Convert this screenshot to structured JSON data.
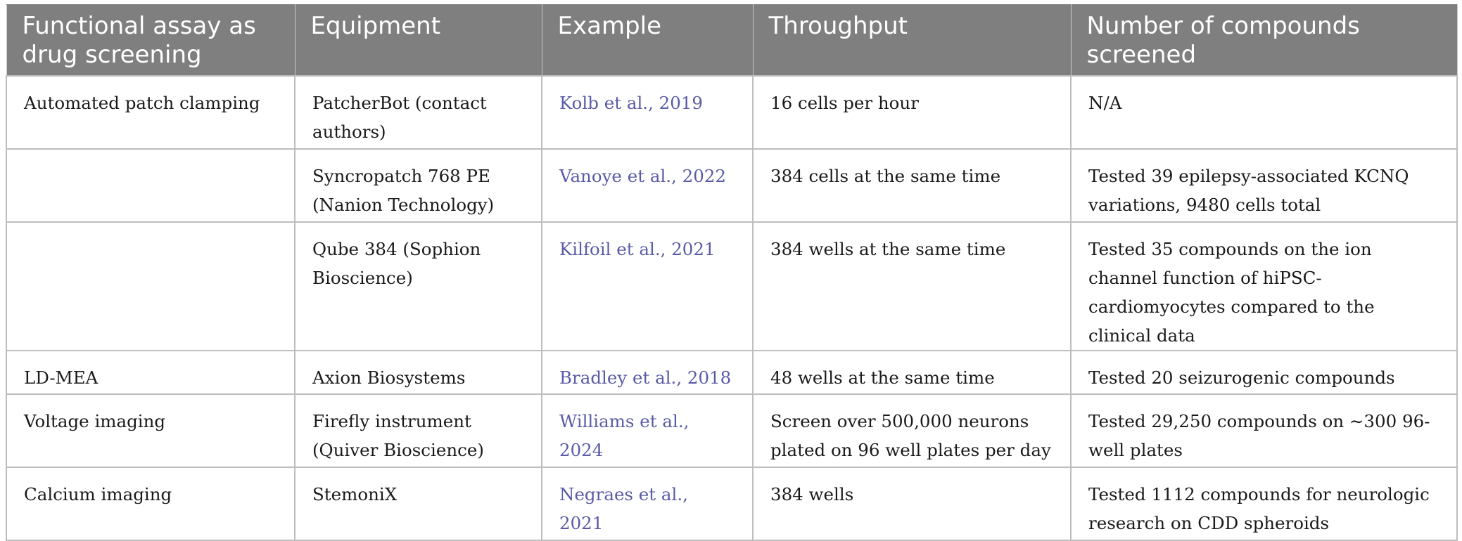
{
  "table": {
    "headers": [
      "Functional assay as drug screening",
      "Equipment",
      "Example",
      "Throughput",
      "Number of compounds screened"
    ],
    "rows": [
      {
        "assay": "Automated patch clamping",
        "equipment": "PatcherBot (contact authors)",
        "example": "Kolb et al., 2019",
        "throughput": "16 cells per hour",
        "compounds": "N/A"
      },
      {
        "assay": "",
        "equipment": "Syncropatch 768 PE (Nanion Technology)",
        "example": "Vanoye et al., 2022",
        "throughput": "384 cells at the same time",
        "compounds": "Tested 39 epilepsy-associated KCNQ variations, 9480 cells total"
      },
      {
        "assay": "",
        "equipment": "Qube 384 (Sophion Bioscience)",
        "example": "Kilfoil et al., 2021",
        "throughput": "384 wells at the same time",
        "compounds": "Tested 35 compounds on the ion channel function of hiPSC-cardiomyocytes compared to the clinical data"
      },
      {
        "assay": "LD-MEA",
        "equipment": "Axion Biosystems",
        "example": "Bradley et al., 2018",
        "throughput": "48 wells at the same time",
        "compounds": "Tested 20 seizurogenic compounds"
      },
      {
        "assay": "Voltage imaging",
        "equipment": "Firefly instrument (Quiver Bioscience)",
        "example": "Williams et al., 2024",
        "throughput": "Screen over 500,000 neurons plated on 96 well plates per day",
        "compounds": "Tested 29,250 compounds on ∼300 96-well plates"
      },
      {
        "assay": "Calcium imaging",
        "equipment": "StemoniX",
        "example": "Negraes et al., 2021",
        "throughput": "384 wells",
        "compounds": "Tested 1112 compounds for neurologic research on CDD spheroids"
      }
    ]
  },
  "colors": {
    "header_background": "#7f7f7f",
    "header_text": "#ffffff",
    "body_text": "#1a1a1a",
    "citation_link": "#5a5aa6",
    "grid_lines": "#bdbdbd"
  }
}
